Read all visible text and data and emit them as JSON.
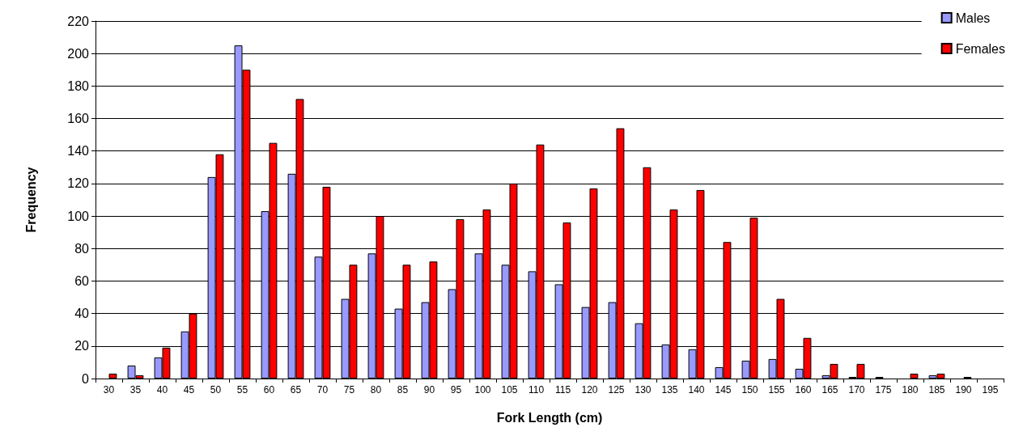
{
  "chart_data": {
    "type": "bar",
    "xlabel": "Fork Length (cm)",
    "ylabel": "Frequency",
    "categories": [
      "30",
      "35",
      "40",
      "45",
      "50",
      "55",
      "60",
      "65",
      "70",
      "75",
      "80",
      "85",
      "90",
      "95",
      "100",
      "105",
      "110",
      "115",
      "120",
      "125",
      "130",
      "135",
      "140",
      "145",
      "150",
      "155",
      "160",
      "165",
      "170",
      "175",
      "180",
      "185",
      "190",
      "195"
    ],
    "series": [
      {
        "name": "Males",
        "color": "#9999ff",
        "values": [
          0,
          8,
          13,
          29,
          124,
          205,
          103,
          126,
          75,
          49,
          77,
          43,
          47,
          55,
          77,
          70,
          66,
          58,
          44,
          47,
          34,
          21,
          18,
          7,
          11,
          12,
          6,
          2,
          1,
          1,
          0,
          2,
          0,
          0
        ]
      },
      {
        "name": "Females",
        "color": "#ff0000",
        "values": [
          3,
          2,
          19,
          40,
          138,
          190,
          145,
          172,
          118,
          70,
          100,
          70,
          72,
          98,
          104,
          120,
          144,
          96,
          117,
          154,
          130,
          104,
          116,
          84,
          99,
          49,
          25,
          9,
          9,
          0,
          3,
          3,
          1,
          0
        ]
      }
    ],
    "ylim": [
      0,
      220
    ],
    "yticks": [
      0,
      20,
      40,
      60,
      80,
      100,
      120,
      140,
      160,
      180,
      200,
      220
    ],
    "grid": "y",
    "legend": "top right"
  }
}
